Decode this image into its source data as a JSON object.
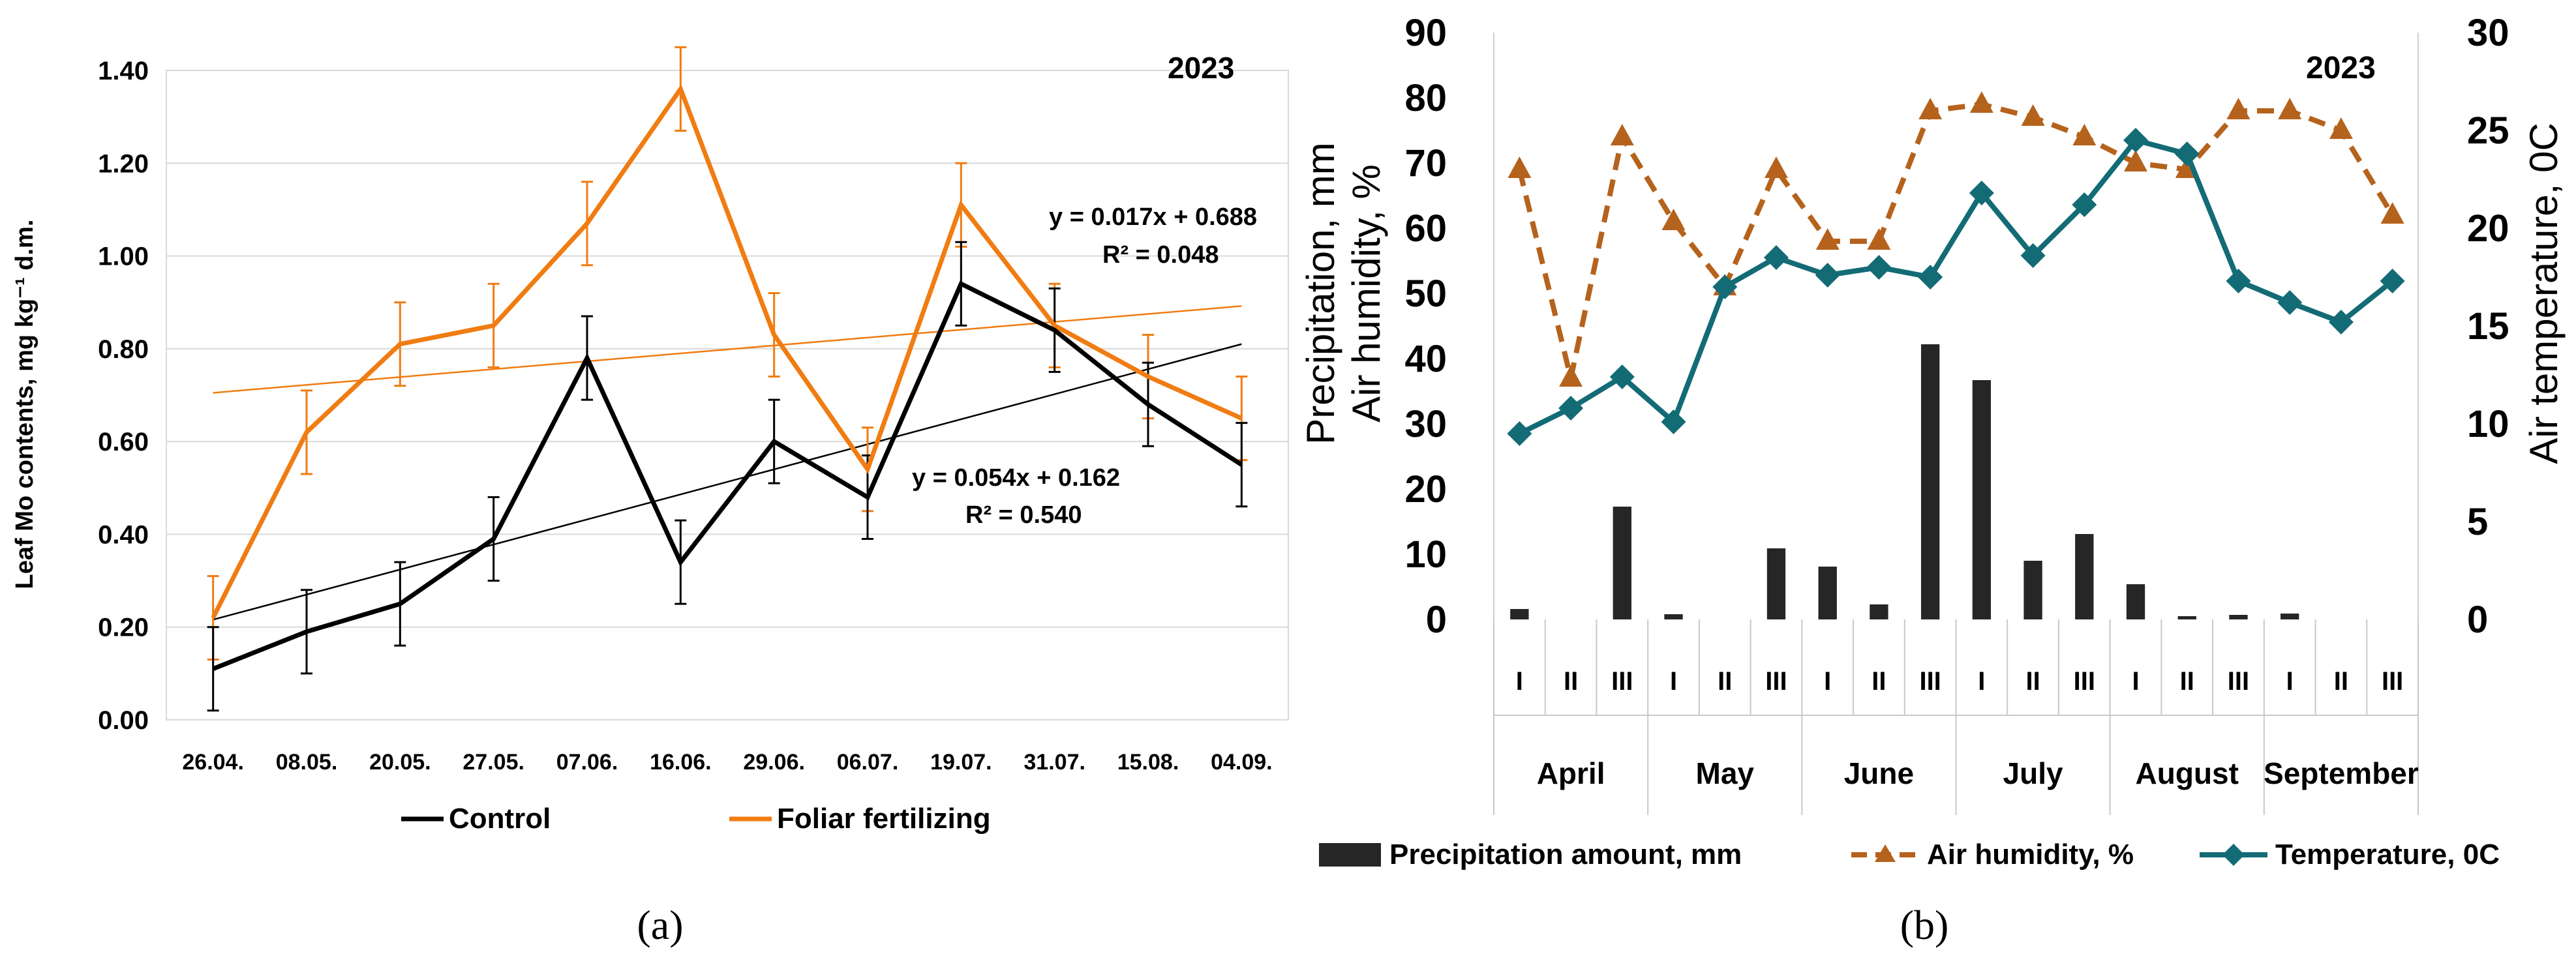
{
  "chart_data": [
    {
      "type": "line",
      "panel_label": "(a)",
      "year_label": "2023",
      "ylabel": "Leaf Mo contents, mg kg⁻¹ d.m.",
      "xlabel": "",
      "ylim": [
        0,
        1.4
      ],
      "yticks": [
        "0.00",
        "0.20",
        "0.40",
        "0.60",
        "0.80",
        "1.00",
        "1.20",
        "1.40"
      ],
      "categories": [
        "26.04.",
        "08.05.",
        "20.05.",
        "27.05.",
        "07.06.",
        "16.06.",
        "29.06.",
        "06.07.",
        "19.07.",
        "31.07.",
        "15.08.",
        "04.09."
      ],
      "series": [
        {
          "name": "Control",
          "color": "#000000",
          "values": [
            0.11,
            0.19,
            0.25,
            0.39,
            0.78,
            0.34,
            0.6,
            0.48,
            0.94,
            0.84,
            0.68,
            0.55
          ],
          "error": [
            0.09,
            0.09,
            0.09,
            0.09,
            0.09,
            0.09,
            0.09,
            0.09,
            0.09,
            0.09,
            0.09,
            0.09
          ],
          "trend": {
            "slope": 0.054,
            "intercept": 0.162,
            "equation": "y = 0.054x + 0.162",
            "r2": "R² = 0.540"
          }
        },
        {
          "name": "Foliar fertilizing",
          "color": "#F07C12",
          "values": [
            0.22,
            0.62,
            0.81,
            0.85,
            1.07,
            1.36,
            0.83,
            0.54,
            1.11,
            0.85,
            0.74,
            0.65
          ],
          "error": [
            0.09,
            0.09,
            0.09,
            0.09,
            0.09,
            0.09,
            0.09,
            0.09,
            0.09,
            0.09,
            0.09,
            0.09
          ],
          "trend": {
            "slope": 0.017,
            "intercept": 0.688,
            "equation": "y = 0.017x + 0.688",
            "r2": "R² = 0.048"
          }
        }
      ],
      "legend": [
        "Control",
        "Foliar fertilizing"
      ],
      "legend_position": "bottom",
      "grid": true
    },
    {
      "type": "bar",
      "panel_label": "(b)",
      "year_label": "2023",
      "ylabel_left_1": "Precipitation, mm",
      "ylabel_left_2": "Air humidity, %",
      "ylabel_right": "Air temperature, 0C",
      "ylim_left": [
        0,
        90
      ],
      "ylim_right": [
        0,
        30
      ],
      "yticks_left": [
        "0",
        "10",
        "20",
        "30",
        "40",
        "50",
        "60",
        "70",
        "80",
        "90"
      ],
      "yticks_right": [
        "0",
        "5",
        "10",
        "15",
        "20",
        "25",
        "30"
      ],
      "decades": [
        "I",
        "II",
        "III",
        "I",
        "II",
        "III",
        "I",
        "II",
        "III",
        "I",
        "II",
        "III",
        "I",
        "II",
        "III",
        "I",
        "II",
        "III"
      ],
      "months": [
        "April",
        "May",
        "June",
        "July",
        "August",
        "September"
      ],
      "series": [
        {
          "name": "Precipitation amount, mm",
          "kind": "bar",
          "axis": "left",
          "color": "#262626",
          "values": [
            1.6,
            0,
            17.3,
            0.8,
            0,
            10.9,
            8.1,
            2.3,
            42.2,
            36.7,
            9.0,
            13.1,
            5.4,
            0.5,
            0.7,
            0.9,
            0,
            0
          ]
        },
        {
          "name": "Air humidity, %",
          "kind": "line",
          "axis": "left",
          "color": "#B5621C",
          "values": [
            69,
            37,
            74,
            61,
            51,
            69,
            58,
            58,
            78,
            79,
            77,
            74,
            70,
            69,
            78,
            78,
            75,
            62
          ]
        },
        {
          "name": "Temperature, 0C",
          "kind": "line",
          "axis": "right",
          "color": "#136B75",
          "values": [
            9.5,
            10.8,
            12.4,
            10.1,
            17.0,
            18.5,
            17.6,
            18.0,
            17.5,
            21.8,
            18.6,
            21.2,
            24.5,
            23.8,
            17.3,
            16.2,
            15.2,
            17.3
          ]
        }
      ],
      "legend_position": "bottom",
      "grid": false
    }
  ]
}
